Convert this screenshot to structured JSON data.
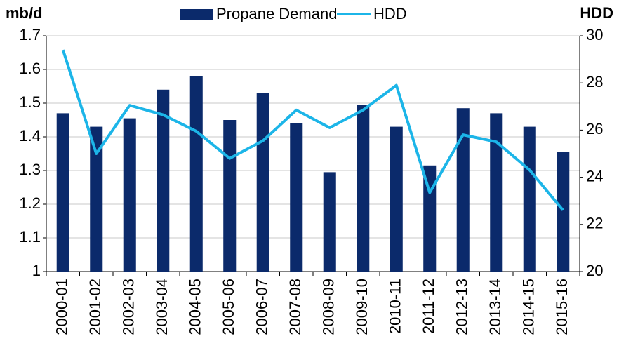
{
  "chart_data": {
    "type": "bar-line",
    "y_label": "mb/d",
    "y2_label": "HDD",
    "categories": [
      "2000-01",
      "2001-02",
      "2002-03",
      "2003-04",
      "2004-05",
      "2005-06",
      "2006-07",
      "2007-08",
      "2008-09",
      "2009-10",
      "2010-11",
      "2011-12",
      "2012-13",
      "2013-14",
      "2014-15",
      "2015-16"
    ],
    "series": [
      {
        "name": "Propane Demand",
        "type": "bar",
        "color": "#0b2a6b",
        "values": [
          1.47,
          1.43,
          1.455,
          1.54,
          1.58,
          1.45,
          1.53,
          1.44,
          1.295,
          1.495,
          1.43,
          1.315,
          1.485,
          1.47,
          1.43,
          1.355
        ]
      },
      {
        "name": "HDD",
        "type": "line",
        "axis": "y2",
        "color": "#1cb5e8",
        "values": [
          29.4,
          25.0,
          27.05,
          26.65,
          25.95,
          24.8,
          25.55,
          26.85,
          26.1,
          26.85,
          27.9,
          23.35,
          25.8,
          25.5,
          24.3,
          22.6
        ]
      }
    ],
    "ylim": [
      1,
      1.7
    ],
    "yticks": [
      1,
      1.1,
      1.2,
      1.3,
      1.4,
      1.5,
      1.6,
      1.7
    ],
    "y2lim": [
      20,
      30
    ],
    "y2ticks": [
      20,
      22,
      24,
      26,
      28,
      30
    ],
    "grid": true,
    "legend": "top"
  }
}
